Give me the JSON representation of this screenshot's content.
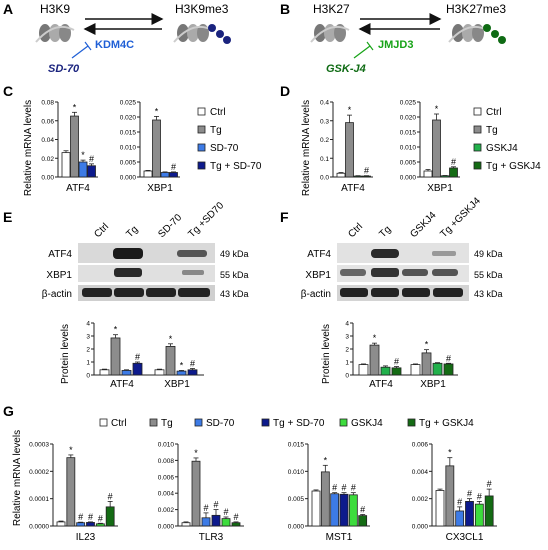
{
  "panels": {
    "a": {
      "letter": "A",
      "left": "H3K9",
      "right": "H3K9me3",
      "enzyme": "KDM4C",
      "inhibitor": "SD-70",
      "color": "#1f5fd6",
      "nuc_color": "#1a237e"
    },
    "b": {
      "letter": "B",
      "left": "H3K27",
      "right": "H3K27me3",
      "enzyme": "JMJD3",
      "inhibitor": "GSK-J4",
      "color": "#17a317",
      "nuc_color": "#0f6b14"
    },
    "c": {
      "letter": "C"
    },
    "d": {
      "letter": "D"
    },
    "e": {
      "letter": "E",
      "lanes": [
        "Ctrl",
        "Tg",
        "SD-70",
        "Tg +SD70"
      ],
      "blots": [
        {
          "name": "ATF4",
          "kda": "49 kDa"
        },
        {
          "name": "XBP1",
          "kda": "55 kDa"
        },
        {
          "name": "β-actin",
          "kda": "43 kDa"
        }
      ]
    },
    "f": {
      "letter": "F",
      "lanes": [
        "Ctrl",
        "Tg",
        "GSKJ4",
        "Tg +GSKJ4"
      ],
      "blots": [
        {
          "name": "ATF4",
          "kda": "49 kDa"
        },
        {
          "name": "XBP1",
          "kda": "55 kDa"
        },
        {
          "name": "β-actin",
          "kda": "43 kDa"
        }
      ]
    },
    "g": {
      "letter": "G"
    }
  },
  "legends": {
    "c": [
      {
        "label": "Ctrl",
        "color": "#ffffff"
      },
      {
        "label": "Tg",
        "color": "#8c8c8c"
      },
      {
        "label": "SD-70",
        "color": "#3d7be6"
      },
      {
        "label": "Tg + SD-70",
        "color": "#0d1a8c"
      }
    ],
    "d": [
      {
        "label": "Ctrl",
        "color": "#ffffff"
      },
      {
        "label": "Tg",
        "color": "#8c8c8c"
      },
      {
        "label": "GSKJ4",
        "color": "#22b14c"
      },
      {
        "label": "Tg + GSKJ4",
        "color": "#146b14"
      }
    ],
    "g": [
      {
        "label": "Ctrl",
        "color": "#ffffff"
      },
      {
        "label": "Tg",
        "color": "#8c8c8c"
      },
      {
        "label": "SD-70",
        "color": "#3d7be6"
      },
      {
        "label": "Tg + SD-70",
        "color": "#0d1a8c"
      },
      {
        "label": "GSKJ4",
        "color": "#3ddc3d"
      },
      {
        "label": "Tg + GSKJ4",
        "color": "#146b14"
      }
    ]
  },
  "chart_data": [
    {
      "id": "C-ATF4",
      "type": "bar",
      "ylabel": "Relative mRNA levels",
      "xlabel": "ATF4",
      "ylim": [
        0,
        0.08
      ],
      "yticks": [
        "0.00",
        "0.02",
        "0.04",
        "0.06",
        "0.08"
      ],
      "values": [
        0.026,
        0.065,
        0.016,
        0.012
      ],
      "errors": [
        0.002,
        0.004,
        0.002,
        0.002
      ],
      "sig": [
        "",
        "*",
        "*",
        "#"
      ],
      "colors": [
        "#ffffff",
        "#8c8c8c",
        "#3d7be6",
        "#0d1a8c"
      ]
    },
    {
      "id": "C-XBP1",
      "type": "bar",
      "xlabel": "XBP1",
      "ylim": [
        0,
        0.025
      ],
      "yticks": [
        "0.000",
        "0.005",
        "0.010",
        "0.015",
        "0.020",
        "0.025"
      ],
      "values": [
        0.002,
        0.019,
        0.0015,
        0.0015
      ],
      "errors": [
        0.0002,
        0.0012,
        0.0002,
        0.0002
      ],
      "sig": [
        "",
        "*",
        "",
        "#"
      ],
      "colors": [
        "#ffffff",
        "#8c8c8c",
        "#3d7be6",
        "#0d1a8c"
      ]
    },
    {
      "id": "D-ATF4",
      "type": "bar",
      "ylabel": "Relative mRNA levels",
      "xlabel": "ATF4",
      "ylim": [
        0,
        0.4
      ],
      "yticks": [
        "0.0",
        "0.1",
        "0.2",
        "0.3",
        "0.4"
      ],
      "values": [
        0.02,
        0.29,
        0.005,
        0.005
      ],
      "errors": [
        0.004,
        0.04,
        0.002,
        0.002
      ],
      "sig": [
        "",
        "*",
        "",
        "#"
      ],
      "colors": [
        "#ffffff",
        "#8c8c8c",
        "#22b14c",
        "#146b14"
      ]
    },
    {
      "id": "D-XBP1",
      "type": "bar",
      "xlabel": "XBP1",
      "ylim": [
        0,
        0.025
      ],
      "yticks": [
        "0.000",
        "0.005",
        "0.010",
        "0.015",
        "0.020",
        "0.025"
      ],
      "values": [
        0.002,
        0.019,
        0.0004,
        0.003
      ],
      "errors": [
        0.0005,
        0.002,
        0.0001,
        0.0004
      ],
      "sig": [
        "",
        "*",
        "",
        "#"
      ],
      "colors": [
        "#ffffff",
        "#8c8c8c",
        "#22b14c",
        "#146b14"
      ]
    },
    {
      "id": "E-quant",
      "type": "bar",
      "ylabel": "Protein levels",
      "ylim": [
        0,
        4
      ],
      "yticks": [
        "0",
        "1",
        "2",
        "3",
        "4"
      ],
      "categories": [
        "ATF4",
        "XBP1"
      ],
      "groups": [
        {
          "values": [
            0.4,
            2.85,
            0.35,
            0.9
          ],
          "errors": [
            0.05,
            0.25,
            0.05,
            0.1
          ],
          "sig": [
            "",
            "*",
            "",
            "#"
          ]
        },
        {
          "values": [
            0.4,
            2.2,
            0.3,
            0.4
          ],
          "errors": [
            0.05,
            0.2,
            0.05,
            0.1
          ],
          "sig": [
            "",
            "*",
            "*",
            "#"
          ]
        }
      ],
      "colors": [
        "#ffffff",
        "#8c8c8c",
        "#3d7be6",
        "#0d1a8c"
      ]
    },
    {
      "id": "F-quant",
      "type": "bar",
      "ylabel": "Protein levels",
      "ylim": [
        0,
        4
      ],
      "yticks": [
        "0",
        "1",
        "2",
        "3",
        "4"
      ],
      "categories": [
        "ATF4",
        "XBP1"
      ],
      "groups": [
        {
          "values": [
            0.8,
            2.3,
            0.6,
            0.55
          ],
          "errors": [
            0.05,
            0.15,
            0.1,
            0.1
          ],
          "sig": [
            "",
            "*",
            "",
            "#"
          ]
        },
        {
          "values": [
            0.8,
            1.7,
            0.9,
            0.85
          ],
          "errors": [
            0.05,
            0.25,
            0.05,
            0.05
          ],
          "sig": [
            "",
            "*",
            "",
            "#"
          ]
        }
      ],
      "colors": [
        "#ffffff",
        "#8c8c8c",
        "#22b14c",
        "#146b14"
      ]
    },
    {
      "id": "G-IL23",
      "type": "bar",
      "ylabel": "Relative mRNA levels",
      "xlabel": "IL23",
      "ylim": [
        0,
        0.0003
      ],
      "yticks": [
        "0.0000",
        "0.0001",
        "0.0002",
        "0.0003"
      ],
      "values": [
        1.5e-05,
        0.00025,
        1.2e-05,
        1.3e-05,
        8e-06,
        7e-05
      ],
      "errors": [
        3e-06,
        1e-05,
        2e-06,
        2e-06,
        2e-06,
        2e-05
      ],
      "sig": [
        "",
        "*",
        "#",
        "#",
        "#",
        "#"
      ],
      "colors": [
        "#ffffff",
        "#8c8c8c",
        "#3d7be6",
        "#0d1a8c",
        "#3ddc3d",
        "#146b14"
      ]
    },
    {
      "id": "G-TLR3",
      "type": "bar",
      "xlabel": "TLR3",
      "ylim": [
        0,
        0.01
      ],
      "yticks": [
        "0.000",
        "0.002",
        "0.004",
        "0.006",
        "0.008",
        "0.010"
      ],
      "values": [
        0.0004,
        0.0079,
        0.001,
        0.0013,
        0.0009,
        0.0004
      ],
      "errors": [
        0.0001,
        0.0004,
        0.0006,
        0.0007,
        0.0002,
        0.0001
      ],
      "sig": [
        "",
        "*",
        "#",
        "#",
        "#",
        "#"
      ],
      "colors": [
        "#ffffff",
        "#8c8c8c",
        "#3d7be6",
        "#0d1a8c",
        "#3ddc3d",
        "#146b14"
      ]
    },
    {
      "id": "G-MST1",
      "type": "bar",
      "xlabel": "MST1",
      "ylim": [
        0,
        0.015
      ],
      "yticks": [
        "0.000",
        "0.005",
        "0.010",
        "0.015"
      ],
      "values": [
        0.0064,
        0.0099,
        0.0059,
        0.0058,
        0.0057,
        0.0019
      ],
      "errors": [
        0.0002,
        0.0012,
        0.0002,
        0.0003,
        0.0004,
        0.0002
      ],
      "sig": [
        "",
        "*",
        "#",
        "#",
        "#",
        "#"
      ],
      "colors": [
        "#ffffff",
        "#8c8c8c",
        "#3d7be6",
        "#0d1a8c",
        "#3ddc3d",
        "#146b14"
      ]
    },
    {
      "id": "G-CX3CL1",
      "type": "bar",
      "xlabel": "CX3CL1",
      "ylim": [
        0,
        0.006
      ],
      "yticks": [
        "0.000",
        "0.002",
        "0.004",
        "0.006"
      ],
      "values": [
        0.0026,
        0.0044,
        0.0011,
        0.0018,
        0.0016,
        0.0022
      ],
      "errors": [
        0.0001,
        0.0006,
        0.0003,
        0.0002,
        0.0002,
        0.0005
      ],
      "sig": [
        "",
        "*",
        "#",
        "#",
        "#",
        "#"
      ],
      "colors": [
        "#ffffff",
        "#8c8c8c",
        "#3d7be6",
        "#0d1a8c",
        "#3ddc3d",
        "#146b14"
      ]
    }
  ]
}
